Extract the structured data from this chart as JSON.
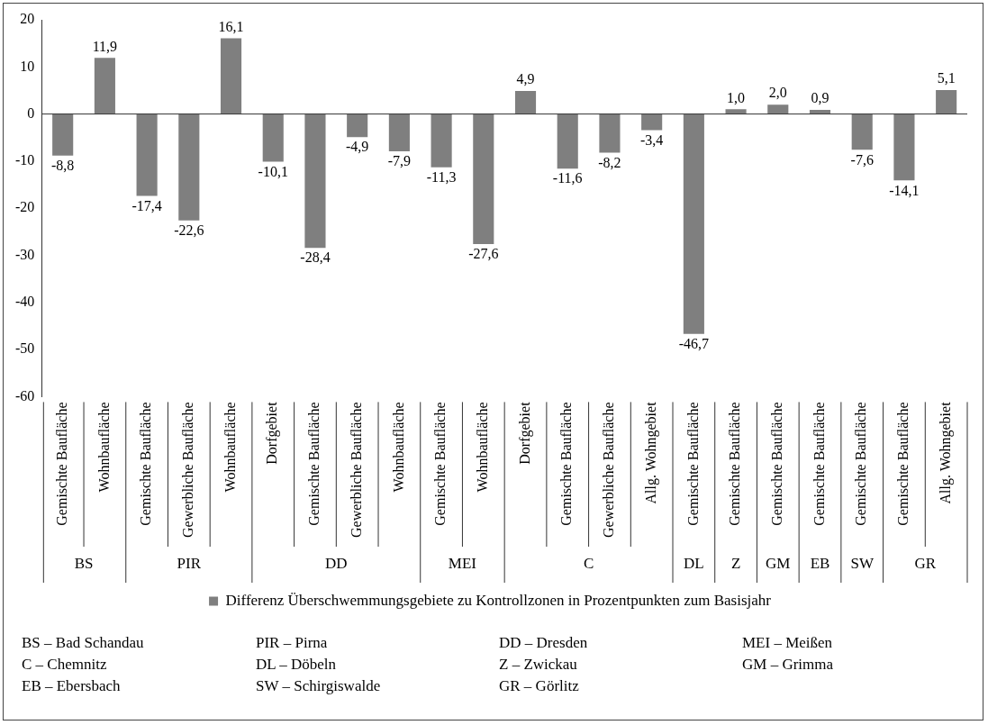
{
  "chart_data": {
    "type": "bar",
    "categories": [
      "Gemischte Baufläche",
      "Wohnbaufläche",
      "Gemischte Baufläche",
      "Gewerbliche Baufläche",
      "Wohnbaufläche",
      "Dorfgebiet",
      "Gemischte Baufläche",
      "Gewerbliche Baufläche",
      "Wohnbaufläche",
      "Gemischte Baufläche",
      "Wohnbaufläche",
      "Dorfgebiet",
      "Gemischte Baufläche",
      "Gewerbliche Baufläche",
      "Allg. Wohngebiet",
      "Gemischte Baufläche",
      "Gemischte Baufläche",
      "Gemischte Baufläche",
      "Gemischte Baufläche",
      "Gemischte Baufläche",
      "Gemischte Baufläche",
      "Allg. Wohngebiet"
    ],
    "series": [
      {
        "name": "Differenz Überschwemmungsgebiete zu Kontrollzonen in Prozentpunkten zum Basisjahr",
        "color": "#7f7f7f",
        "values": [
          -8.8,
          11.9,
          -17.4,
          -22.6,
          16.1,
          -10.1,
          -28.4,
          -4.9,
          -7.9,
          -11.3,
          -27.6,
          4.9,
          -11.6,
          -8.2,
          -3.4,
          -46.7,
          1.0,
          2.0,
          0.9,
          -7.6,
          -14.1,
          5.1
        ],
        "value_labels": [
          "-8,8",
          "11,9",
          "-17,4",
          "-22,6",
          "16,1",
          "-10,1",
          "-28,4",
          "-4,9",
          "-7,9",
          "-11,3",
          "-27,6",
          "4,9",
          "-11,6",
          "-8,2",
          "-3,4",
          "-46,7",
          "1,0",
          "2,0",
          "0,9",
          "-7,6",
          "-14,1",
          "5,1"
        ]
      }
    ],
    "ylim": [
      -60,
      20
    ],
    "yticks": [
      -60,
      -50,
      -40,
      -30,
      -20,
      -10,
      0,
      10,
      20
    ],
    "legend": "bottom",
    "annotations": [
      "BS",
      "PIR",
      "DD",
      "MEI",
      "C",
      "DL",
      "Z",
      "GM",
      "EB",
      "SW",
      "GR",
      "BS – Bad Schandau",
      "PIR – Pirna",
      "DD – Dresden",
      "MEI – Meißen",
      "C – Chemnitz",
      "DL – Döbeln",
      "Z – Zwickau",
      "GM – Grimma",
      "EB – Ebersbach",
      "SW – Schirgiswalde",
      "GR – Görlitz"
    ]
  }
}
